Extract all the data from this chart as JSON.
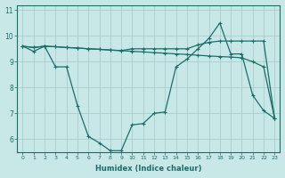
{
  "xlabel": "Humidex (Indice chaleur)",
  "ylabel": "",
  "xlim": [
    -0.5,
    23.5
  ],
  "ylim": [
    5.5,
    11.2
  ],
  "yticks": [
    6,
    7,
    8,
    9,
    10,
    11
  ],
  "xticks": [
    0,
    1,
    2,
    3,
    4,
    5,
    6,
    7,
    8,
    9,
    10,
    11,
    12,
    13,
    14,
    15,
    16,
    17,
    18,
    19,
    20,
    21,
    22,
    23
  ],
  "bg_color": "#c8e8e8",
  "grid_color": "#b0cccc",
  "line_color": "#1a6e6a",
  "line1_x": [
    0,
    1,
    2,
    3,
    4,
    5,
    6,
    7,
    8,
    9,
    10,
    11,
    12,
    13,
    14,
    15,
    16,
    17,
    18,
    19,
    20,
    21,
    22,
    23
  ],
  "line1_y": [
    9.6,
    9.55,
    9.6,
    9.58,
    9.55,
    9.53,
    9.5,
    9.48,
    9.45,
    9.43,
    9.4,
    9.38,
    9.35,
    9.33,
    9.3,
    9.28,
    9.25,
    9.22,
    9.2,
    9.18,
    9.15,
    9.0,
    8.8,
    6.8
  ],
  "line2_x": [
    0,
    1,
    2,
    3,
    4,
    5,
    6,
    7,
    8,
    9,
    10,
    11,
    12,
    13,
    14,
    15,
    16,
    17,
    18,
    19,
    20,
    21,
    22,
    23
  ],
  "line2_y": [
    9.6,
    9.55,
    9.6,
    9.58,
    9.55,
    9.53,
    9.5,
    9.48,
    9.45,
    9.43,
    9.5,
    9.5,
    9.5,
    9.5,
    9.5,
    9.5,
    9.65,
    9.75,
    9.8,
    9.8,
    9.8,
    9.8,
    9.8,
    6.8
  ],
  "line3_x": [
    0,
    1,
    2,
    3,
    4,
    5,
    6,
    7,
    8,
    9,
    10,
    11,
    12,
    13,
    14,
    15,
    16,
    17,
    18,
    19,
    20,
    21,
    22,
    23
  ],
  "line3_y": [
    9.6,
    9.4,
    9.6,
    8.8,
    8.8,
    7.3,
    6.1,
    5.85,
    5.55,
    5.55,
    6.55,
    6.6,
    7.0,
    7.05,
    8.8,
    9.1,
    9.5,
    9.9,
    10.5,
    9.3,
    9.3,
    7.7,
    7.1,
    6.8
  ]
}
